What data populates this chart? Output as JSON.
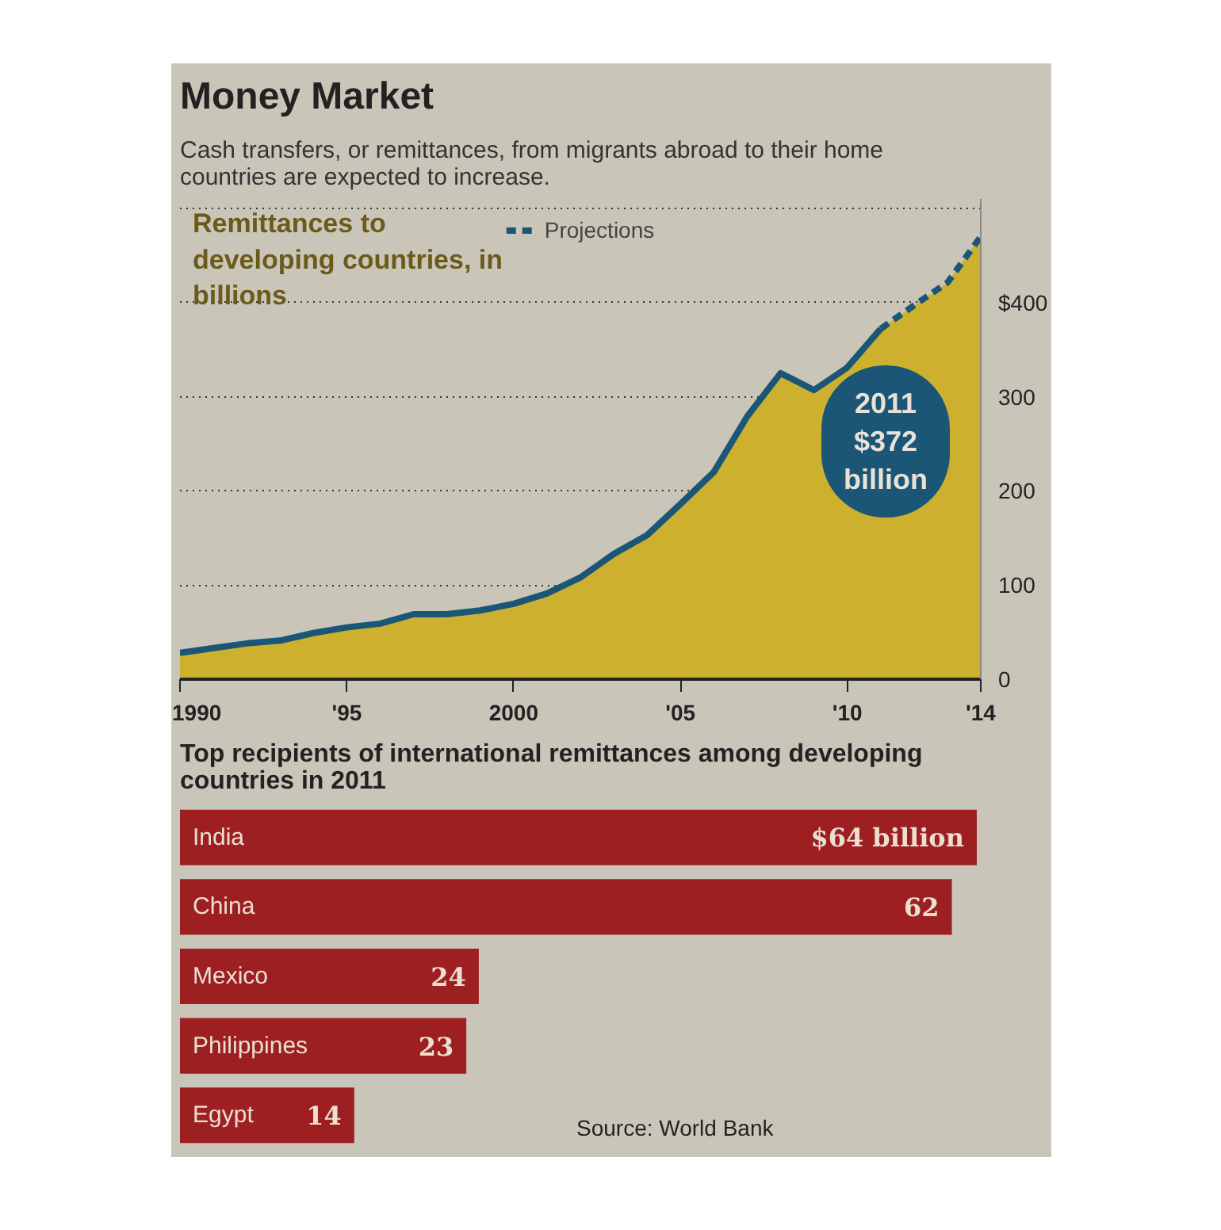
{
  "chart_data": [
    {
      "type": "line",
      "title": "Money Market",
      "subtitle": "Cash transfers, or remittances, from migrants abroad to their home countries are expected to increase.",
      "ylabel": "Remittances to developing countries, in billions",
      "series": [
        {
          "type": "area",
          "color": "#cdb12e",
          "x": [
            1990,
            1991,
            1992,
            1993,
            1994,
            1995,
            1996,
            1997,
            1998,
            1999,
            2000,
            2001,
            2002,
            2003,
            2004,
            2005,
            2006,
            2007,
            2008,
            2009,
            2010,
            2011,
            2012,
            2013,
            2014
          ],
          "values": [
            28,
            33,
            38,
            41,
            49,
            55,
            59,
            69,
            69,
            73,
            80,
            91,
            108,
            133,
            153,
            186,
            220,
            279,
            325,
            307,
            331,
            372,
            397,
            421,
            470
          ]
        },
        {
          "type": "line",
          "color": "#1b5676",
          "line_style": "solid",
          "x": [
            1990,
            1991,
            1992,
            1993,
            1994,
            1995,
            1996,
            1997,
            1998,
            1999,
            2000,
            2001,
            2002,
            2003,
            2004,
            2005,
            2006,
            2007,
            2008,
            2009,
            2010,
            2011
          ],
          "values": [
            28,
            33,
            38,
            41,
            49,
            55,
            59,
            69,
            69,
            73,
            80,
            91,
            108,
            133,
            153,
            186,
            220,
            279,
            325,
            307,
            331,
            372
          ]
        },
        {
          "type": "line",
          "name": "Projections",
          "color": "#1b5676",
          "line_style": "dashed",
          "x": [
            2011,
            2012,
            2013,
            2014
          ],
          "values": [
            372,
            397,
            421,
            470
          ]
        }
      ],
      "annotations": [
        "2011\n$372\nbillion"
      ],
      "xlim": [
        1990,
        2014
      ],
      "ylim": [
        0,
        510
      ],
      "xticks": [
        1990,
        {
          "value": 1995,
          "label": "'95"
        },
        2000,
        {
          "value": 2005,
          "label": "'05"
        },
        {
          "value": 2010,
          "label": "'10"
        },
        {
          "value": 2014,
          "label": "'14"
        }
      ],
      "yticks": [
        0,
        100,
        200,
        300,
        {
          "value": 400,
          "label": "$400"
        },
        {
          "value": 500,
          "label": null
        }
      ],
      "grid": "y",
      "legend": "top"
    },
    {
      "type": "bar",
      "orientation": "horizontal",
      "title": "Top recipients of international remittances among developing countries in 2011",
      "categories": [
        "India",
        "China",
        "Mexico",
        "Philippines",
        "Egypt"
      ],
      "values": [
        64,
        62,
        24,
        23,
        14
      ],
      "color": "#9e1f22",
      "value_labels": [
        "$64 billion",
        "62",
        "24",
        "23",
        "14"
      ],
      "tick_labels": false,
      "annotations": [
        "Source: World Bank"
      ]
    }
  ]
}
